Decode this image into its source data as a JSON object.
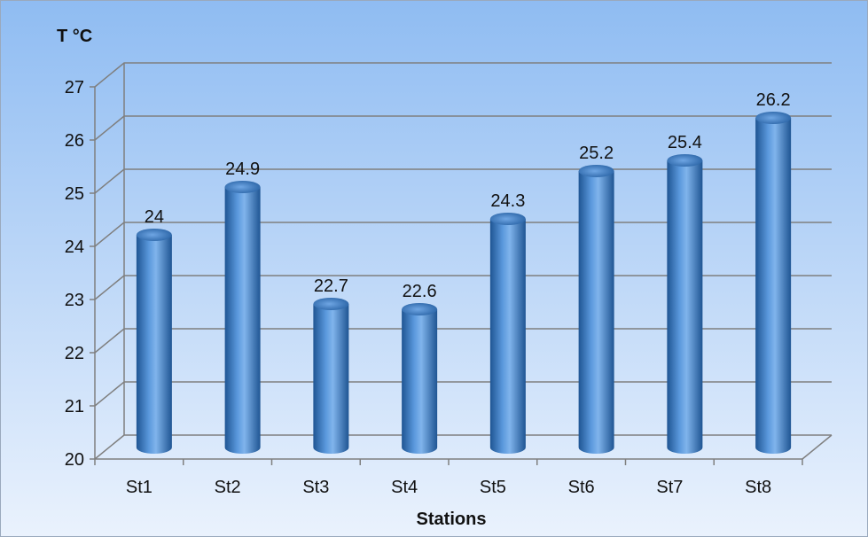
{
  "chart_data": {
    "type": "bar",
    "categories": [
      "St1",
      "St2",
      "St3",
      "St4",
      "St5",
      "St6",
      "St7",
      "St8"
    ],
    "values": [
      24,
      24.9,
      22.7,
      22.6,
      24.3,
      25.2,
      25.4,
      26.2
    ],
    "data_labels": [
      "24",
      "24.9",
      "22.7",
      "22.6",
      "24.3",
      "25.2",
      "25.4",
      "26.2"
    ],
    "yticks": [
      20,
      21,
      22,
      23,
      24,
      25,
      26,
      27
    ],
    "ylim": [
      20,
      27
    ],
    "ylabel": "T °C",
    "xlabel": "Stations",
    "grid": true,
    "bar_style": "3d-cylinder",
    "colors": {
      "bar_mid": "#5a98dc",
      "bar_dark": "#1f5593",
      "background_top": "#8fbcf2",
      "background_bottom": "#eaf2fd",
      "gridline": "#7f7f7f"
    }
  }
}
